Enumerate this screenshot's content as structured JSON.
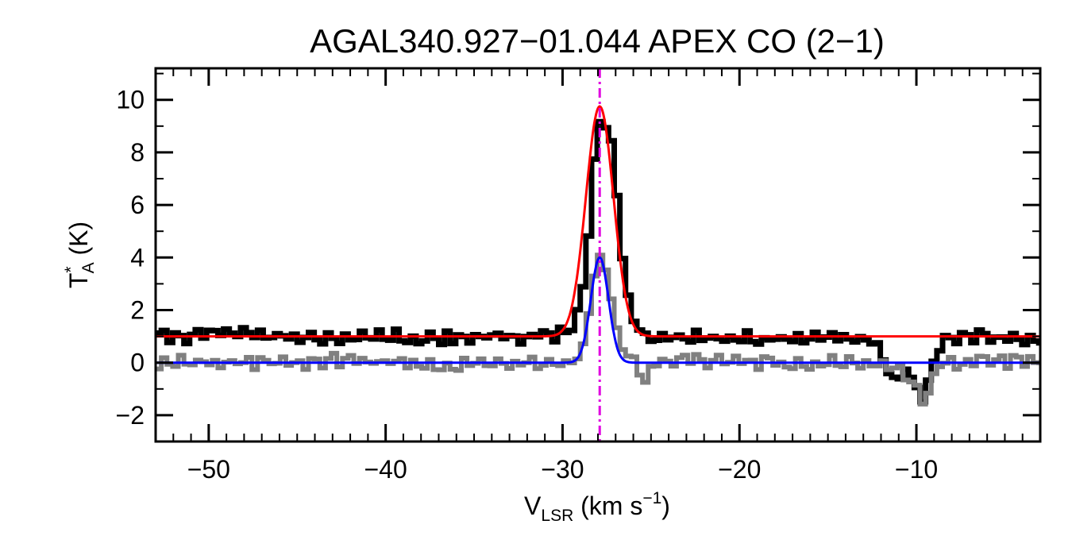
{
  "chart_data": {
    "type": "line",
    "title": "AGAL340.927−01.044  APEX CO (2−1)",
    "xlabel": {
      "main": "V",
      "sub": "LSR",
      "rest": " (km s",
      "sup": "−1",
      "end": ")"
    },
    "ylabel": {
      "main": "T",
      "sup": "*",
      "sub": "A",
      "rest": " (K)"
    },
    "xlim": [
      -53,
      -3
    ],
    "ylim": [
      -3,
      11.2
    ],
    "x_ticks": [
      -50,
      -40,
      -30,
      -20,
      -10
    ],
    "x_tick_labels": [
      "−50",
      "−40",
      "−30",
      "−20",
      "−10"
    ],
    "y_ticks": [
      -2,
      0,
      2,
      4,
      6,
      8,
      10
    ],
    "y_tick_labels": [
      "−2",
      "0",
      "2",
      "4",
      "6",
      "8",
      "10"
    ],
    "vline": {
      "x": -27.9,
      "color": "#e000e0",
      "style": "dash-dot"
    },
    "series": [
      {
        "color": "#000000",
        "style": "histogram",
        "points": [
          [
            -53,
            1.0
          ],
          [
            -51,
            1.0
          ],
          [
            -49,
            1.1
          ],
          [
            -47,
            1.05
          ],
          [
            -45,
            1.0
          ],
          [
            -43,
            0.95
          ],
          [
            -41,
            1.05
          ],
          [
            -39,
            1.0
          ],
          [
            -37,
            0.95
          ],
          [
            -35,
            1.0
          ],
          [
            -33,
            0.95
          ],
          [
            -31,
            1.0
          ],
          [
            -30,
            1.1
          ],
          [
            -29.5,
            1.5
          ],
          [
            -29,
            2.8
          ],
          [
            -28.6,
            5.5
          ],
          [
            -28.3,
            8.2
          ],
          [
            -28,
            9.2
          ],
          [
            -27.7,
            9.0
          ],
          [
            -27.4,
            8.3
          ],
          [
            -27.1,
            6.5
          ],
          [
            -26.8,
            4.2
          ],
          [
            -26.4,
            2.3
          ],
          [
            -26,
            1.4
          ],
          [
            -25.5,
            1.05
          ],
          [
            -24,
            1.0
          ],
          [
            -22,
            0.95
          ],
          [
            -20,
            1.0
          ],
          [
            -18,
            0.9
          ],
          [
            -16,
            0.95
          ],
          [
            -14,
            0.9
          ],
          [
            -12.5,
            0.85
          ],
          [
            -11.8,
            -0.3
          ],
          [
            -11.2,
            -0.8
          ],
          [
            -10.8,
            -0.2
          ],
          [
            -10.2,
            -0.9
          ],
          [
            -9.8,
            -1.4
          ],
          [
            -9.4,
            -0.6
          ],
          [
            -9,
            0.4
          ],
          [
            -8.5,
            0.9
          ],
          [
            -7,
            1.0
          ],
          [
            -5,
            0.95
          ],
          [
            -3,
            0.85
          ]
        ]
      },
      {
        "color": "#808080",
        "style": "histogram",
        "points": [
          [
            -53,
            0.0
          ],
          [
            -51,
            0.05
          ],
          [
            -49,
            0.0
          ],
          [
            -47,
            -0.05
          ],
          [
            -45,
            0.0
          ],
          [
            -43,
            0.1
          ],
          [
            -41,
            0.0
          ],
          [
            -39,
            0.05
          ],
          [
            -37,
            -0.05
          ],
          [
            -35,
            0.0
          ],
          [
            -33,
            0.05
          ],
          [
            -31,
            0.0
          ],
          [
            -29.5,
            0.1
          ],
          [
            -29,
            0.6
          ],
          [
            -28.6,
            2.2
          ],
          [
            -28.3,
            3.5
          ],
          [
            -28,
            4.1
          ],
          [
            -27.7,
            3.6
          ],
          [
            -27.4,
            2.4
          ],
          [
            -27,
            1.0
          ],
          [
            -26.6,
            0.3
          ],
          [
            -26,
            0.0
          ],
          [
            -25.5,
            -0.9
          ],
          [
            -25,
            0.0
          ],
          [
            -23,
            0.05
          ],
          [
            -21,
            0.0
          ],
          [
            -19,
            -0.05
          ],
          [
            -17,
            0.0
          ],
          [
            -15,
            0.05
          ],
          [
            -13,
            0.0
          ],
          [
            -12,
            -0.1
          ],
          [
            -11.5,
            0.0
          ],
          [
            -10.8,
            -0.5
          ],
          [
            -10.2,
            -0.7
          ],
          [
            -9.8,
            -1.5
          ],
          [
            -9.3,
            -0.8
          ],
          [
            -9,
            0.0
          ],
          [
            -7,
            0.05
          ],
          [
            -5,
            0.0
          ],
          [
            -3,
            0.0
          ]
        ]
      },
      {
        "color": "#ff0000",
        "style": "gaussian",
        "baseline": 1.0,
        "amplitude": 8.75,
        "center": -27.9,
        "sigma": 0.78
      },
      {
        "color": "#0000ff",
        "style": "gaussian",
        "baseline": 0.0,
        "amplitude": 4.0,
        "center": -27.9,
        "sigma": 0.5
      }
    ]
  }
}
